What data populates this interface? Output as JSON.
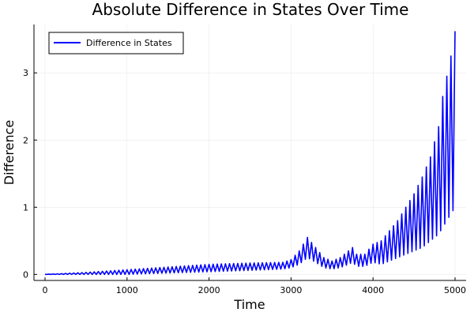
{
  "chart_data": {
    "type": "line",
    "title": "Absolute Difference in States Over Time",
    "xlabel": "Time",
    "ylabel": "Difference",
    "xlim": [
      -135,
      5135
    ],
    "ylim": [
      -0.09,
      3.72
    ],
    "xticks": [
      0,
      1000,
      2000,
      3000,
      4000,
      5000
    ],
    "xtick_labels": [
      "0",
      "1000",
      "2000",
      "3000",
      "4000",
      "5000"
    ],
    "yticks": [
      0,
      1,
      2,
      3
    ],
    "ytick_labels": [
      "0",
      "1",
      "2",
      "3"
    ],
    "grid": true,
    "legend_position": "top-left",
    "series": [
      {
        "name": "Difference in States",
        "color": "#0000ff",
        "envelope_x": [
          0,
          500,
          1000,
          1500,
          2000,
          2500,
          2900,
          3000,
          3100,
          3200,
          3300,
          3400,
          3500,
          3600,
          3700,
          3750,
          3800,
          3900,
          4000,
          4100,
          4200,
          4300,
          4400,
          4500,
          4600,
          4700,
          4800,
          4850,
          4900,
          4950,
          5000
        ],
        "envelope_upper": [
          0.0,
          0.03,
          0.07,
          0.11,
          0.15,
          0.17,
          0.18,
          0.22,
          0.35,
          0.55,
          0.4,
          0.25,
          0.2,
          0.25,
          0.35,
          0.4,
          0.3,
          0.3,
          0.45,
          0.5,
          0.65,
          0.8,
          1.0,
          1.2,
          1.45,
          1.75,
          2.2,
          2.65,
          2.95,
          3.25,
          3.62
        ],
        "envelope_lower": [
          0.0,
          0.0,
          0.0,
          0.02,
          0.04,
          0.06,
          0.08,
          0.1,
          0.15,
          0.25,
          0.18,
          0.1,
          0.08,
          0.1,
          0.15,
          0.18,
          0.12,
          0.12,
          0.18,
          0.15,
          0.2,
          0.25,
          0.3,
          0.35,
          0.4,
          0.5,
          0.6,
          0.7,
          0.8,
          0.9,
          1.0
        ],
        "oscillation_period": 50,
        "x_end": 5000
      }
    ]
  }
}
